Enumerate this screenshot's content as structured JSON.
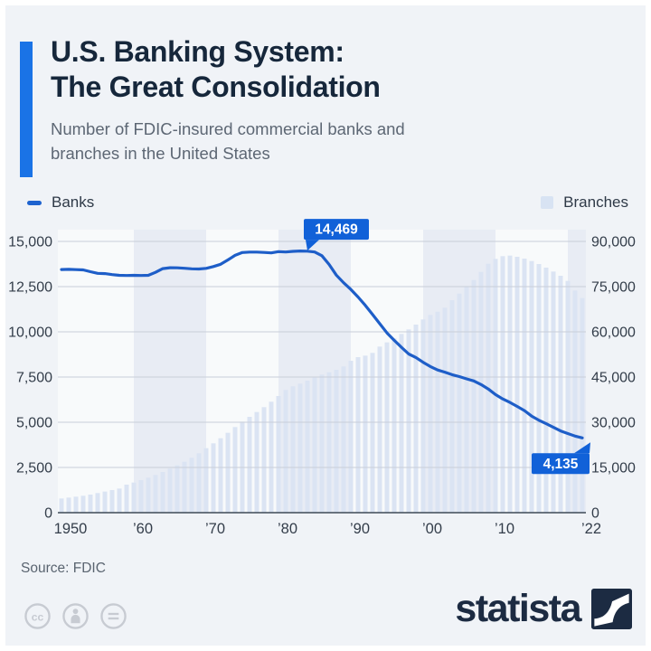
{
  "header": {
    "title_line1": "U.S. Banking System:",
    "title_line2": "The Great Consolidation",
    "subtitle": "Number of FDIC-insured commercial banks and branches in the United States"
  },
  "legend": {
    "banks_label": "Banks",
    "branches_label": "Branches"
  },
  "source": "Source: FDIC",
  "branding": {
    "logo_text": "statista"
  },
  "footer_icons": [
    "cc-icon",
    "attribution-person-icon",
    "no-derivatives-icon"
  ],
  "colors": {
    "background": "#f0f3f7",
    "accent_blue": "#1a73e6",
    "title": "#16273b",
    "subtitle": "#5d6774",
    "line_blue": "#1e5ec8",
    "bar_fill": "#dbe4f3",
    "callout_bg": "#1161d8",
    "callout_text": "#ffffff",
    "gridline": "#c9ced8",
    "axis_line": "#3e4a57",
    "axis_text": "#333d4a",
    "band_dark": "#e8ecf4",
    "band_light": "rgba(255,255,255,0.55)",
    "legend_dash": "#1e63cf",
    "legend_square": "#d8e3f3",
    "footer_icon": "#c7cbd2",
    "logo_navy": "#1c2b42"
  },
  "chart_data": {
    "type": "line+bar",
    "title": "U.S. Banking System: The Great Consolidation",
    "subtitle": "Number of FDIC-insured commercial banks and branches in the United States",
    "x_start_year": 1950,
    "x_end_year": 2022,
    "grid": true,
    "legend_position": "top",
    "left_axis": {
      "label": "Banks",
      "max": 15000,
      "ticks": [
        "15,000",
        "12,500",
        "10,000",
        "7,500",
        "5,000",
        "2,500",
        "0"
      ]
    },
    "right_axis": {
      "label": "Branches",
      "max": 90000,
      "ticks": [
        "90,000",
        "75,000",
        "60,000",
        "45,000",
        "30,000",
        "15,000",
        "0"
      ]
    },
    "x_ticks": [
      {
        "label": "1950",
        "year": 1950
      },
      {
        "label": "’60",
        "year": 1960
      },
      {
        "label": "’70",
        "year": 1970
      },
      {
        "label": "’80",
        "year": 1980
      },
      {
        "label": "’90",
        "year": 1990
      },
      {
        "label": "’00",
        "year": 2000
      },
      {
        "label": "’10",
        "year": 2010
      },
      {
        "label": "’22",
        "year": 2022
      }
    ],
    "series": [
      {
        "name": "Banks",
        "type": "line",
        "axis": "left",
        "color": "#1e5ec8",
        "values": [
          13446,
          13455,
          13440,
          13425,
          13323,
          13237,
          13218,
          13165,
          13124,
          13114,
          13126,
          13115,
          13124,
          13291,
          13493,
          13544,
          13538,
          13514,
          13487,
          13473,
          13511,
          13612,
          13733,
          13976,
          14230,
          14384,
          14410,
          14411,
          14391,
          14364,
          14434,
          14414,
          14451,
          14469,
          14460,
          14417,
          14210,
          13723,
          13137,
          12715,
          12347,
          11927,
          11466,
          10958,
          10452,
          9941,
          9528,
          9143,
          8774,
          8580,
          8315,
          8080,
          7888,
          7770,
          7631,
          7526,
          7402,
          7284,
          7087,
          6840,
          6530,
          6291,
          6097,
          5876,
          5643,
          5340,
          5112,
          4918,
          4718,
          4519,
          4377,
          4237,
          4135
        ]
      },
      {
        "name": "Branches",
        "type": "bar",
        "axis": "right",
        "color": "#dbe4f3",
        "values": [
          4700,
          5000,
          5300,
          5600,
          6000,
          6500,
          7000,
          7500,
          8000,
          9300,
          10000,
          10800,
          11600,
          12500,
          13500,
          14600,
          15700,
          16900,
          18200,
          19700,
          21400,
          23000,
          24700,
          26500,
          28400,
          30200,
          31800,
          33400,
          35000,
          36800,
          38700,
          40700,
          41900,
          42800,
          43800,
          44800,
          45800,
          46600,
          47400,
          48500,
          50400,
          51600,
          52100,
          53000,
          55100,
          56500,
          57800,
          59300,
          60800,
          62400,
          64100,
          65600,
          66700,
          68000,
          70500,
          72700,
          74900,
          77200,
          79900,
          82600,
          84200,
          85100,
          85300,
          84900,
          84300,
          83500,
          82500,
          81300,
          80000,
          78600,
          76900,
          73700,
          71200
        ]
      }
    ],
    "callouts": [
      {
        "series": "Banks",
        "year": 1983,
        "label": "14,469",
        "position": "above"
      },
      {
        "series": "Banks",
        "year": 2022,
        "label": "4,135",
        "position": "below-left"
      }
    ],
    "band_decades": [
      1960,
      1980,
      2000,
      2020
    ]
  }
}
